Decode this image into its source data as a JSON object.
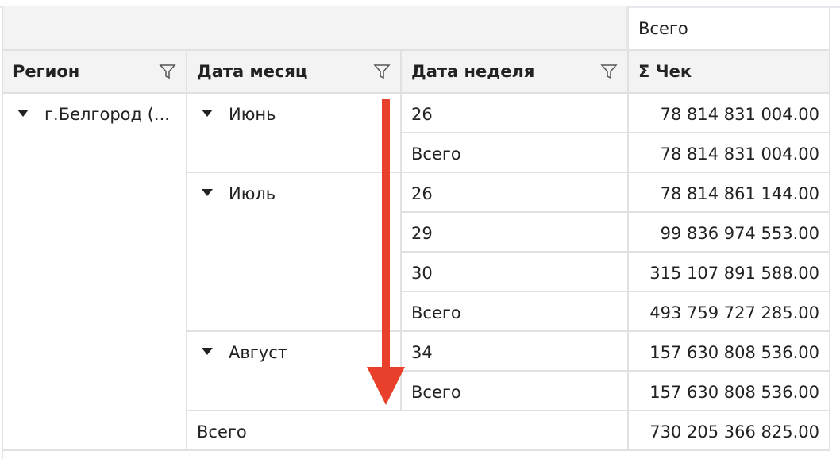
{
  "column_total_label": "Всего",
  "headers": {
    "region": "Регион",
    "month": "Дата месяц",
    "week": "Дата неделя",
    "measure": "Σ Чек"
  },
  "region": {
    "label": "г.Белгород (..."
  },
  "months": [
    {
      "label": "Июнь",
      "rows": [
        {
          "week": "26",
          "value": "78 814 831 004.00"
        },
        {
          "week": "Всего",
          "value": "78 814 831 004.00"
        }
      ]
    },
    {
      "label": "Июль",
      "rows": [
        {
          "week": "26",
          "value": "78 814 861 144.00"
        },
        {
          "week": "29",
          "value": "99 836 974 553.00"
        },
        {
          "week": "30",
          "value": "315 107 891 588.00"
        },
        {
          "week": "Всего",
          "value": "493 759 727 285.00"
        }
      ]
    },
    {
      "label": "Август",
      "rows": [
        {
          "week": "34",
          "value": "157 630 808 536.00"
        },
        {
          "week": "Всего",
          "value": "157 630 808 536.00"
        }
      ]
    }
  ],
  "grand_total": {
    "label": "Всего",
    "value": "730 205 366 825.00"
  },
  "colors": {
    "arrow": "#e8402a",
    "header_bg": "#f3f3f3",
    "grid": "#e1e1e1"
  },
  "icons": {
    "filter": "funnel-icon",
    "expand": "triangle-down-icon"
  }
}
